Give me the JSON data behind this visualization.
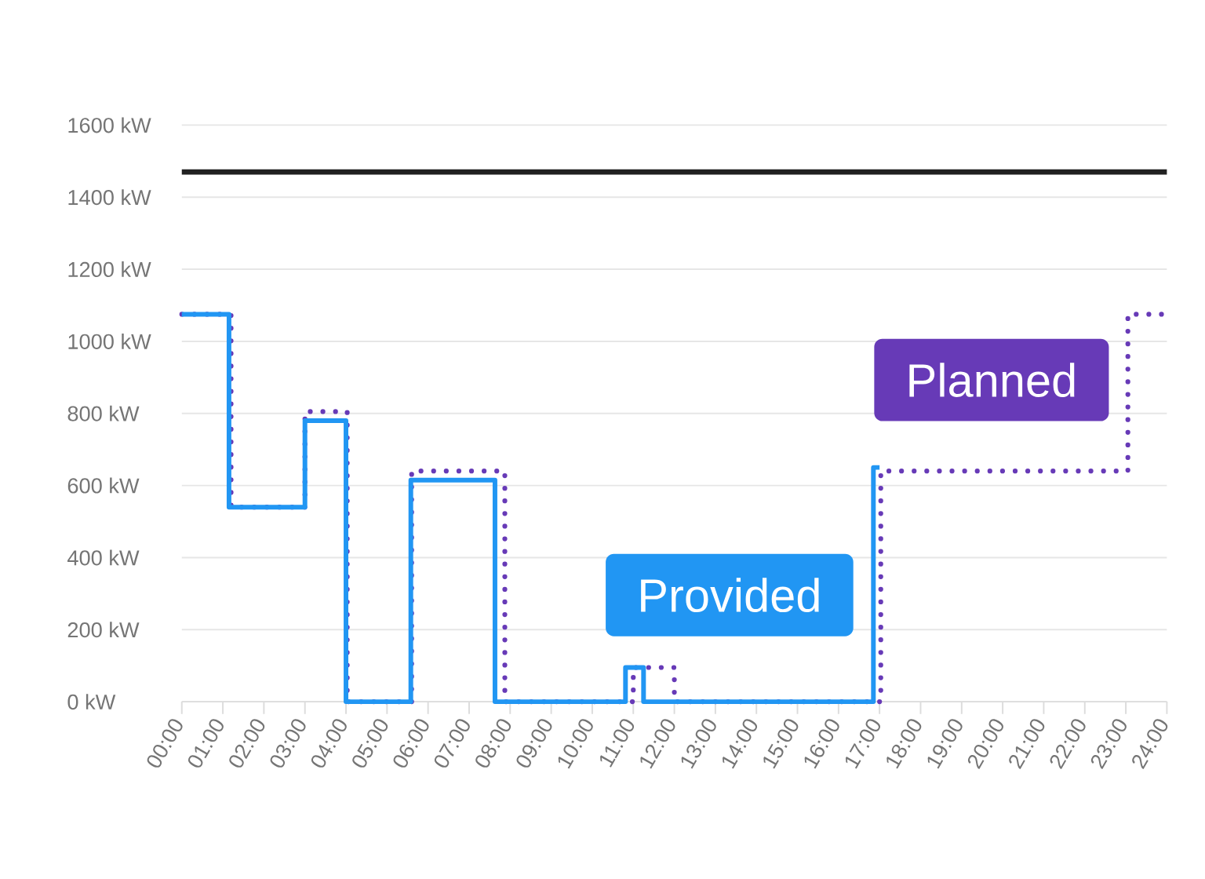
{
  "chart_data": {
    "type": "step",
    "xlim": [
      0,
      24
    ],
    "xticks": [
      {
        "value": 0,
        "label": "00:00"
      },
      {
        "value": 1,
        "label": "01:00"
      },
      {
        "value": 2,
        "label": "02:00"
      },
      {
        "value": 3,
        "label": "03:00"
      },
      {
        "value": 4,
        "label": "04:00"
      },
      {
        "value": 5,
        "label": "05:00"
      },
      {
        "value": 6,
        "label": "06:00"
      },
      {
        "value": 7,
        "label": "07:00"
      },
      {
        "value": 8,
        "label": "08:00"
      },
      {
        "value": 9,
        "label": "09:00"
      },
      {
        "value": 10,
        "label": "10:00"
      },
      {
        "value": 11,
        "label": "11:00"
      },
      {
        "value": 12,
        "label": "12:00"
      },
      {
        "value": 13,
        "label": "13:00"
      },
      {
        "value": 14,
        "label": "14:00"
      },
      {
        "value": 15,
        "label": "15:00"
      },
      {
        "value": 16,
        "label": "16:00"
      },
      {
        "value": 17,
        "label": "17:00"
      },
      {
        "value": 18,
        "label": "18:00"
      },
      {
        "value": 19,
        "label": "19:00"
      },
      {
        "value": 20,
        "label": "20:00"
      },
      {
        "value": 21,
        "label": "21:00"
      },
      {
        "value": 22,
        "label": "22:00"
      },
      {
        "value": 23,
        "label": "23:00"
      },
      {
        "value": 24,
        "label": "24:00"
      }
    ],
    "ylim": [
      0,
      1600
    ],
    "yticks": [
      {
        "value": 0,
        "label": "0 kW"
      },
      {
        "value": 200,
        "label": "200 kW"
      },
      {
        "value": 400,
        "label": "400 kW"
      },
      {
        "value": 600,
        "label": "600 kW"
      },
      {
        "value": 800,
        "label": "800 kW"
      },
      {
        "value": 1000,
        "label": "1000 kW"
      },
      {
        "value": 1200,
        "label": "1200 kW"
      },
      {
        "value": 1400,
        "label": "1400 kW"
      },
      {
        "value": 1600,
        "label": "1600 kW"
      }
    ],
    "grid": "y",
    "series": [
      {
        "name": "Planned",
        "color": "#673ab7",
        "line_style": "dotted",
        "x": [
          0,
          1.2,
          3.0,
          4.03,
          5.6,
          7.87,
          11.0,
          12.0,
          17.03,
          23.05,
          24
        ],
        "values": [
          1075,
          540,
          805,
          0,
          640,
          0,
          95,
          0,
          640,
          1075,
          1075
        ]
      },
      {
        "name": "Provided",
        "color": "#2196f3",
        "line_style": "solid",
        "x": [
          0,
          1.15,
          3.0,
          4.0,
          5.58,
          7.63,
          10.81,
          11.25,
          16.85,
          17.0
        ],
        "values": [
          1075,
          540,
          780,
          0,
          615,
          0,
          95,
          0,
          650,
          650
        ]
      }
    ],
    "ref_lines": [
      {
        "axis": "y",
        "value": 1470,
        "color": "#212121"
      }
    ]
  }
}
